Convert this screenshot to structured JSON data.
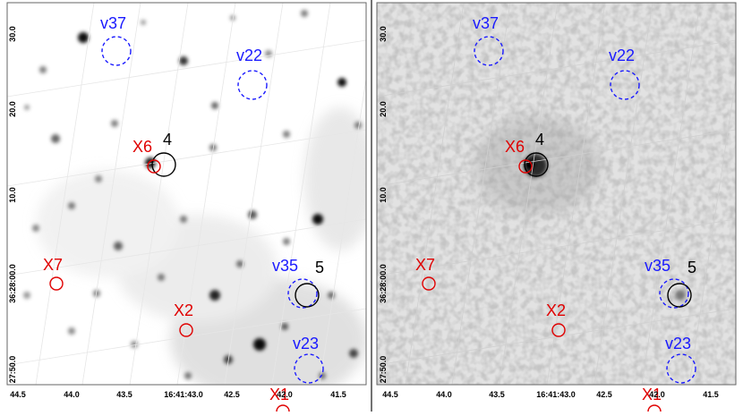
{
  "panels": [
    {
      "id": "left",
      "dec_ticks": [
        "30.0",
        "20.0",
        "10.0",
        "36:28:00.0",
        "27:50.0"
      ],
      "ra_ticks": [
        "44.5",
        "44.0",
        "43.5",
        "16:41:43.0",
        "42.5",
        "42.0",
        "41.5"
      ],
      "labels": {
        "v37": "v37",
        "v22": "v22",
        "X6": "X6",
        "n4": "4",
        "X7": "X7",
        "v35": "v35",
        "n5": "5",
        "X2": "X2",
        "v23": "v23",
        "X1": "X1"
      }
    },
    {
      "id": "right",
      "dec_ticks": [
        "30.0",
        "20.0",
        "10.0",
        "36:28:00.0",
        "27:50.0"
      ],
      "ra_ticks": [
        "44.5",
        "44.0",
        "43.5",
        "16:41:43.0",
        "42.5",
        "42.0",
        "41.5"
      ],
      "labels": {
        "v37": "v37",
        "v22": "v22",
        "X6": "X6",
        "n4": "4",
        "X7": "X7",
        "v35": "v35",
        "n5": "5",
        "X2": "X2",
        "v23": "v23",
        "X1": "X1"
      }
    }
  ],
  "colors": {
    "variable_marker": "#1a1aff",
    "xray_marker": "#e00000",
    "numbered_marker": "#000000",
    "frame": "#666666",
    "grid": "#d8d8d8"
  }
}
